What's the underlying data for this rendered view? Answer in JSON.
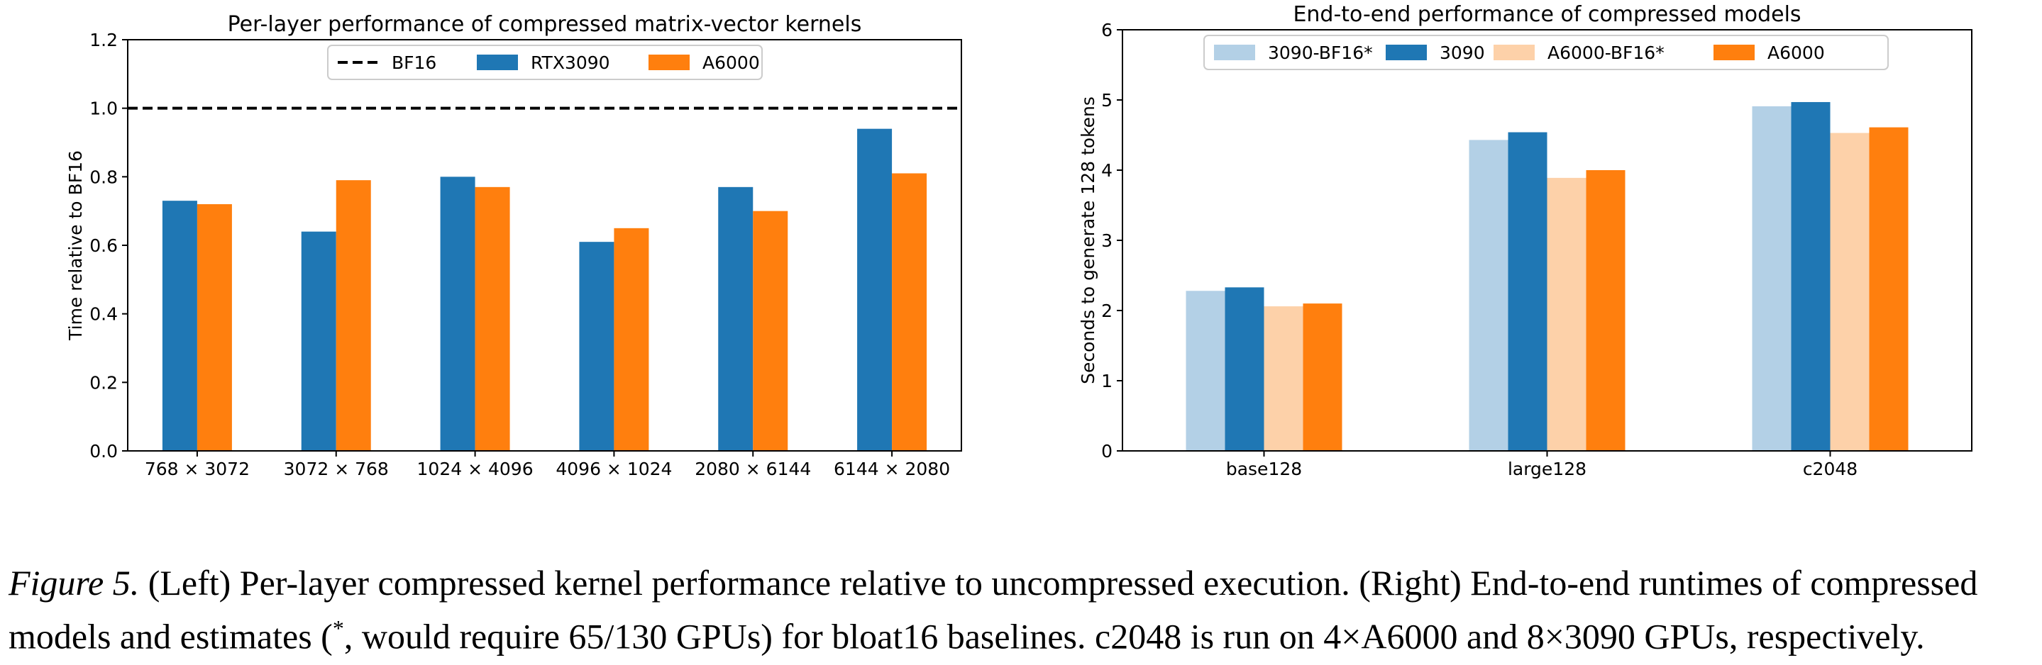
{
  "chart_data": [
    {
      "type": "bar",
      "title": "Per-layer performance of compressed matrix-vector kernels",
      "xlabel": "",
      "ylabel": "Time relative to BF16",
      "categories": [
        "768 × 3072",
        "3072 × 768",
        "1024 × 4096",
        "4096 × 1024",
        "2080 × 6144",
        "6144 × 2080"
      ],
      "series": [
        {
          "name": "RTX3090",
          "color": "#1f77b4",
          "values": [
            0.73,
            0.64,
            0.8,
            0.61,
            0.77,
            0.94
          ]
        },
        {
          "name": "A6000",
          "color": "#ff7f0e",
          "values": [
            0.72,
            0.79,
            0.77,
            0.65,
            0.7,
            0.81
          ]
        }
      ],
      "reference_line": {
        "name": "BF16",
        "value": 1.0,
        "style": "dashed",
        "color": "#000000"
      },
      "ylim": [
        0,
        1.2
      ],
      "yticks": [
        "0.0",
        "0.2",
        "0.4",
        "0.6",
        "0.8",
        "1.0",
        "1.2"
      ],
      "legend_position": "top-center",
      "grid": false
    },
    {
      "type": "bar",
      "title": "End-to-end performance of compressed models",
      "xlabel": "",
      "ylabel": "Seconds to generate 128 tokens",
      "categories": [
        "base128",
        "large128",
        "c2048"
      ],
      "series": [
        {
          "name": "3090-BF16*",
          "color": "#b3d0e6",
          "values": [
            2.28,
            4.43,
            4.91
          ]
        },
        {
          "name": "3090",
          "color": "#1f77b4",
          "values": [
            2.33,
            4.54,
            4.97
          ]
        },
        {
          "name": "A6000-BF16*",
          "color": "#fdd1a9",
          "values": [
            2.06,
            3.89,
            4.53
          ]
        },
        {
          "name": "A6000",
          "color": "#ff7f0e",
          "values": [
            2.1,
            4.0,
            4.61
          ]
        }
      ],
      "ylim": [
        0,
        6
      ],
      "yticks": [
        "0",
        "1",
        "2",
        "3",
        "4",
        "5",
        "6"
      ],
      "legend_position": "top-center",
      "grid": false
    }
  ],
  "caption": {
    "label": "Figure 5.",
    "line1": "(Left) Per-layer compressed kernel performance relative to uncompressed execution. (Right) End-to-end runtimes of compressed",
    "line2_before": "models and estimates (",
    "line2_star": "*",
    "line2_after": ", would require 65/130 GPUs) for bloat16 baselines. c2048 is run on 4×A6000 and 8×3090 GPUs, respectively."
  }
}
